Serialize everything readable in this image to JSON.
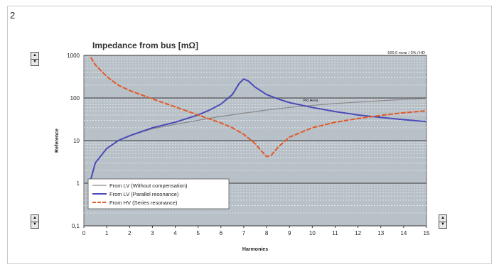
{
  "figure": {
    "number": "2"
  },
  "controls": {
    "up_glyph": "▲",
    "down_glyph": "▼"
  },
  "chart_data": {
    "type": "line",
    "title": "Impedance from bus [mΩ]",
    "subtitle": "500,0 mvar / 3% / HD",
    "xlabel": "Harmonies",
    "ylabel": "Reference",
    "x_scale": "linear",
    "y_scale": "log",
    "xlim": [
      0,
      15
    ],
    "ylim": [
      0.1,
      1000
    ],
    "x_ticks": [
      0,
      1,
      2,
      3,
      4,
      5,
      6,
      7,
      8,
      9,
      10,
      11,
      12,
      13,
      14,
      15
    ],
    "y_ticks": [
      "0,1",
      "1",
      "10",
      "100",
      "1000"
    ],
    "y_tick_values": [
      0.1,
      1,
      10,
      100,
      1000
    ],
    "grid": true,
    "background_color": "#b8c0c8",
    "legend_position": "bottom-left",
    "annotations": [
      {
        "text": "Pkt Area",
        "x": 9.6,
        "y": 82
      }
    ],
    "series": [
      {
        "name": "From LV (Without compensation)",
        "color": "#8a8a8a",
        "style": "solid",
        "x": [
          0.3,
          0.5,
          1,
          1.5,
          2,
          3,
          4,
          5,
          6,
          7,
          8,
          9,
          10,
          11,
          12,
          13,
          14,
          15
        ],
        "y": [
          1.2,
          3,
          6.5,
          10,
          13,
          19,
          24,
          30,
          37,
          44,
          52,
          60,
          67,
          74,
          80,
          86,
          92,
          97
        ]
      },
      {
        "name": "From LV (Parallel resonance)",
        "color": "#4a4ab8",
        "style": "solid",
        "x": [
          0.3,
          0.5,
          1,
          1.5,
          2,
          3,
          4,
          5,
          5.5,
          6,
          6.5,
          6.8,
          7,
          7.2,
          7.5,
          8,
          8.5,
          9,
          10,
          11,
          12,
          13,
          14,
          15
        ],
        "y": [
          1.2,
          3,
          6.5,
          10,
          13,
          20,
          27,
          40,
          52,
          72,
          120,
          220,
          280,
          250,
          180,
          120,
          95,
          78,
          60,
          48,
          40,
          35,
          31,
          28
        ]
      },
      {
        "name": "From HV (Series resonance)",
        "color": "#e05a28",
        "style": "dashed",
        "x": [
          0.3,
          0.5,
          1,
          1.5,
          2,
          3,
          4,
          5,
          6,
          6.5,
          7,
          7.5,
          7.8,
          8,
          8.2,
          8.5,
          9,
          10,
          11,
          12,
          13,
          14,
          15
        ],
        "y": [
          900,
          600,
          320,
          200,
          150,
          95,
          62,
          40,
          26,
          20,
          14,
          8.5,
          5.5,
          4.2,
          4.5,
          7,
          12,
          20,
          27,
          33,
          39,
          45,
          50
        ]
      }
    ]
  }
}
